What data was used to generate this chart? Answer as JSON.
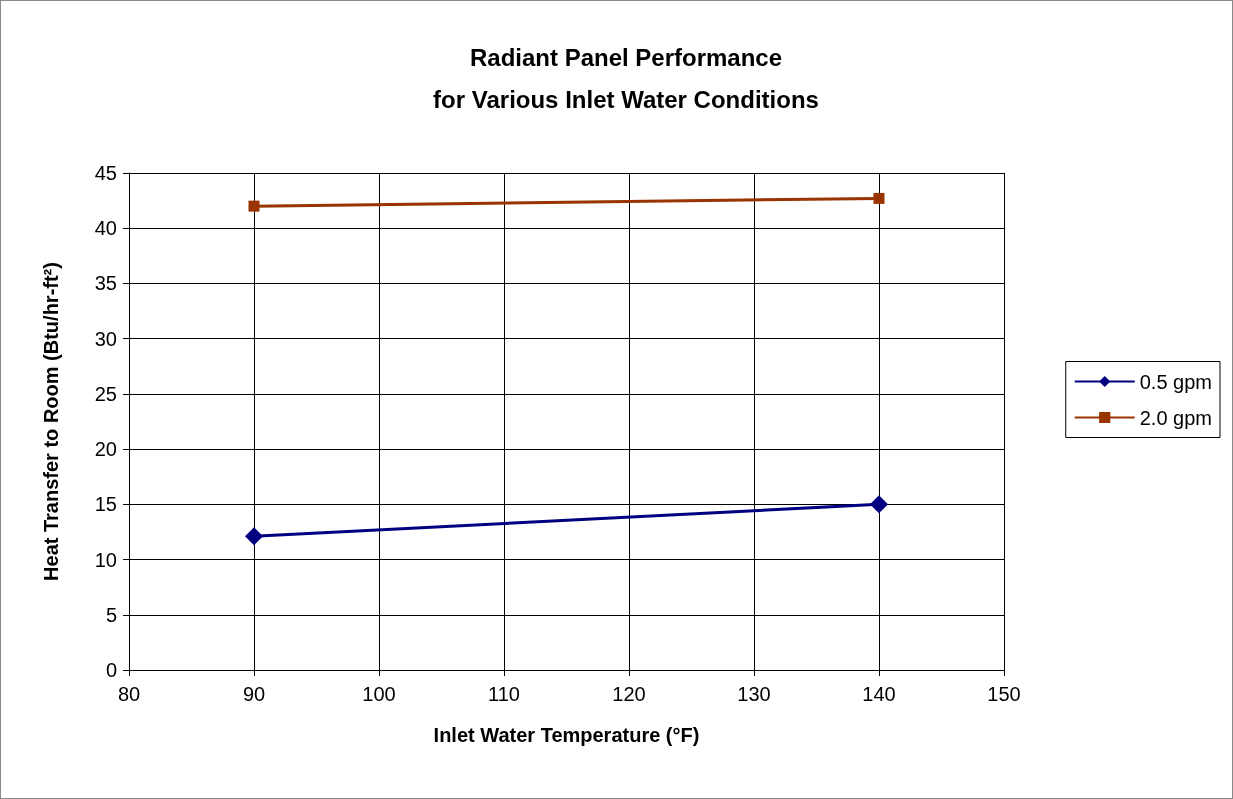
{
  "chart_data": {
    "type": "line",
    "title": "Radiant Panel Performance\nfor Various Inlet Water Conditions",
    "xlabel": "Inlet Water Temperature (°F)",
    "ylabel": "Heat Transfer to Room (Btu/hr-ft²)",
    "x": [
      90,
      140
    ],
    "series": [
      {
        "name": "0.5 gpm",
        "color": "#000080",
        "values": [
          12.1,
          15.0
        ],
        "marker": "diamond"
      },
      {
        "name": "2.0 gpm",
        "color": "#993300",
        "values": [
          42.0,
          42.7
        ],
        "marker": "square"
      }
    ],
    "xlim": [
      80,
      150
    ],
    "xticks": [
      80,
      90,
      100,
      110,
      120,
      130,
      140,
      150
    ],
    "ylim": [
      0,
      45
    ],
    "yticks": [
      0,
      5,
      10,
      15,
      20,
      25,
      30,
      35,
      40,
      45
    ],
    "grid": true,
    "legend": "right",
    "line_style": "solid"
  }
}
